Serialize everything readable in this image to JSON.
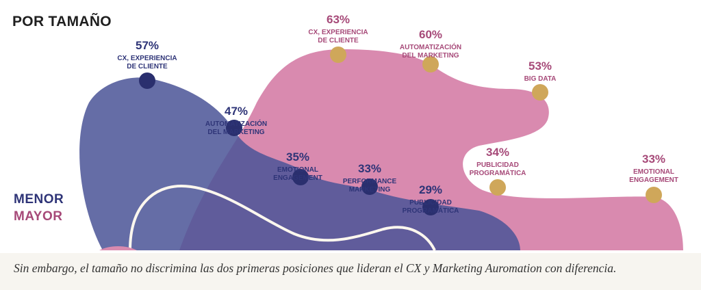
{
  "title": "POR TAMAÑO",
  "caption": "Sin embargo, el tamaño no discrimina las dos primeras posiciones que lideran el CX y Marketing Auromation con diferencia.",
  "colors": {
    "menor_fill": "#4c5597",
    "mayor_fill": "#d98aaf",
    "menor_point": "#2a2f6e",
    "mayor_point": "#cfa75a",
    "menor_text": "#2e3477",
    "mayor_text": "#a64978",
    "curve": "#fdf7ee"
  },
  "chart_data": {
    "type": "scatter",
    "legend_placement": "left",
    "ylim": [
      0,
      100
    ],
    "series": [
      {
        "name": "MENOR",
        "points": [
          {
            "label": "CX, EXPERIENCIA DE CLIENTE",
            "value": 57,
            "value_label": "57%"
          },
          {
            "label": "AUTOMATIZACIÓN DEL MARKETING",
            "value": 47,
            "value_label": "47%"
          },
          {
            "label": "EMOTIONAL ENGAGEMENT",
            "value": 35,
            "value_label": "35%"
          },
          {
            "label": "PERFORMANCE MARKETING",
            "value": 33,
            "value_label": "33%"
          },
          {
            "label": "PUBLICIDAD PROGRAMÁTICA",
            "value": 29,
            "value_label": "29%"
          }
        ]
      },
      {
        "name": "MAYOR",
        "points": [
          {
            "label": "CX, EXPERIENCIA DE CLIENTE",
            "value": 63,
            "value_label": "63%"
          },
          {
            "label": "AUTOMATIZACIÓN DEL MARKETING",
            "value": 60,
            "value_label": "60%"
          },
          {
            "label": "BIG DATA",
            "value": 53,
            "value_label": "53%"
          },
          {
            "label": "PUBLICIDAD PROGRAMÁTICA",
            "value": 34,
            "value_label": "34%"
          },
          {
            "label": "EMOTIONAL ENGAGEMENT",
            "value": 33,
            "value_label": "33%"
          }
        ]
      }
    ]
  }
}
